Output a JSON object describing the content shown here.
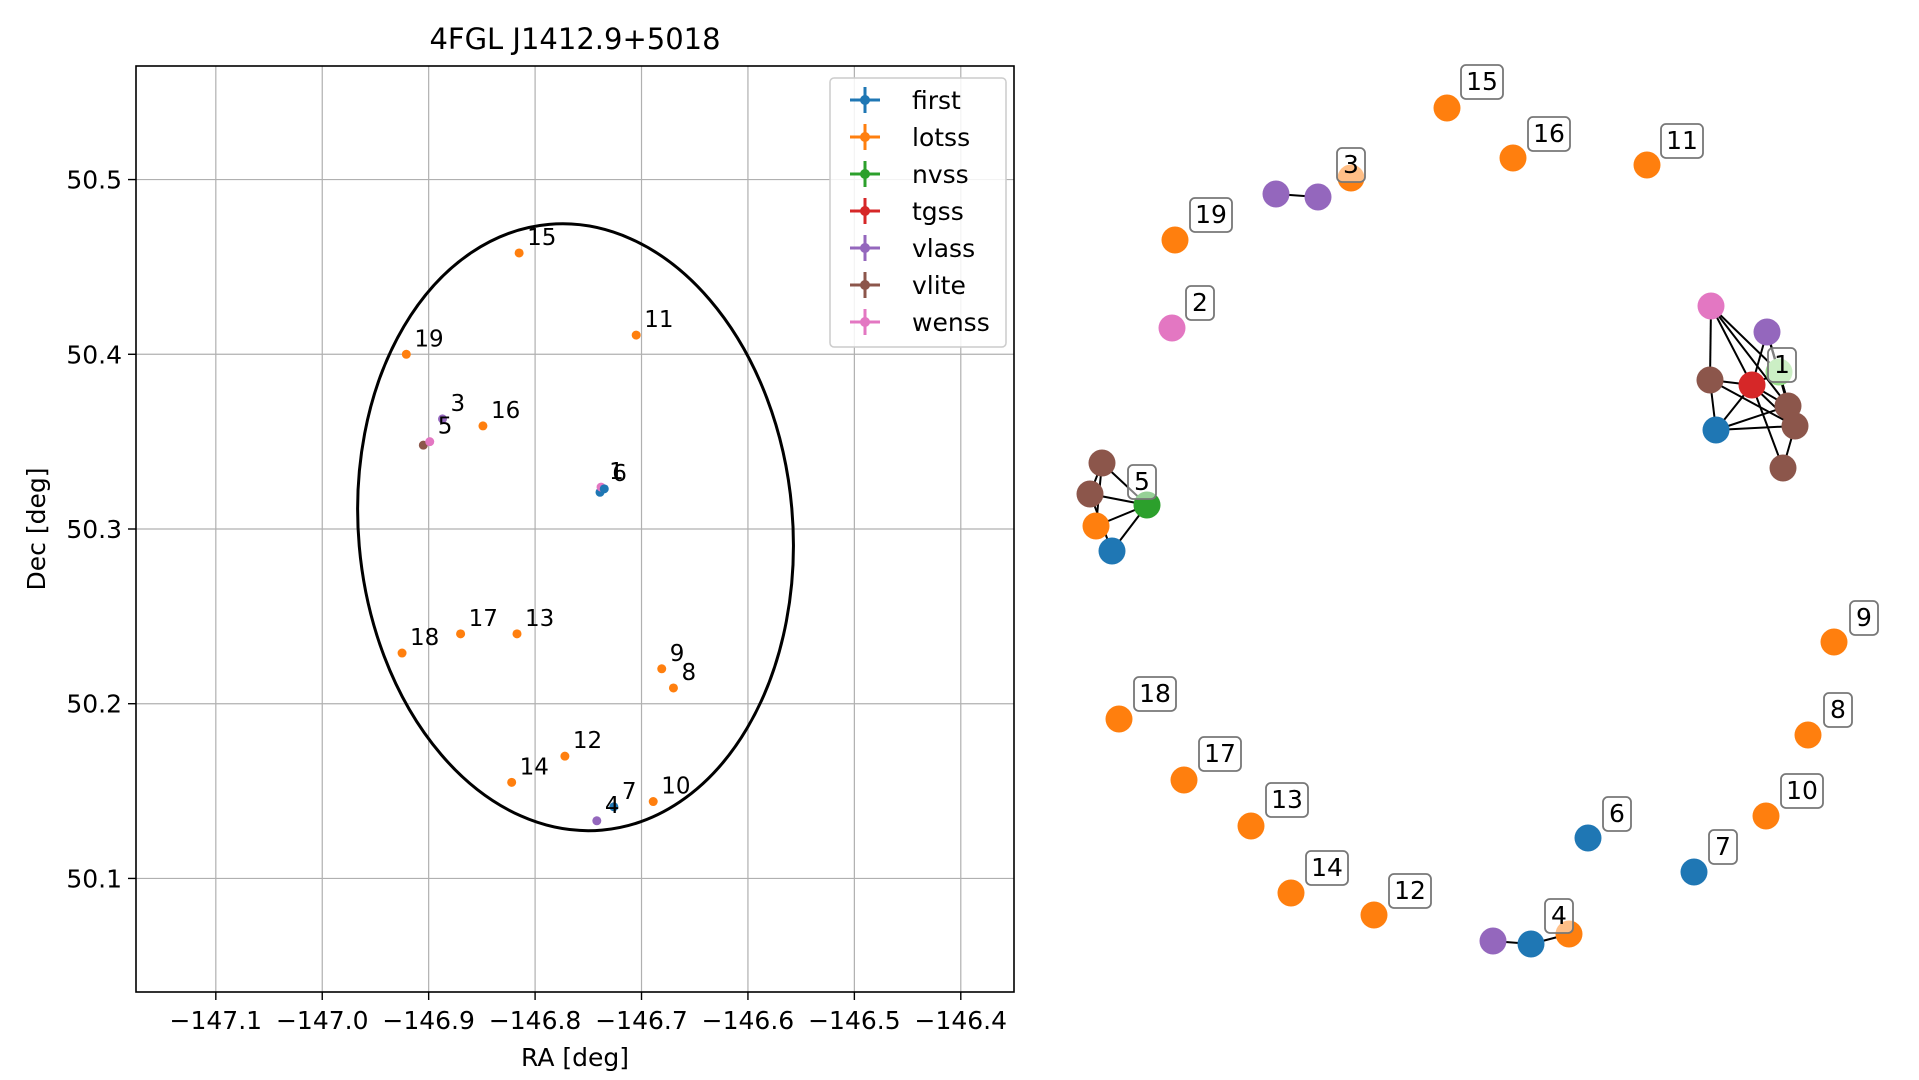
{
  "colors": {
    "first": "#1f77b4",
    "lotss": "#ff7f0e",
    "nvss": "#2ca02c",
    "nvss_light": "#98df8a",
    "tgss": "#d62728",
    "vlass": "#9467bd",
    "vlite": "#8c564b",
    "wenss": "#e377c2",
    "grid": "#b0b0b0",
    "ellipse": "#000000"
  },
  "chart_data": [
    {
      "type": "scatter",
      "title": "4FGL J1412.9+5018",
      "xlabel": "RA [deg]",
      "ylabel": "Dec [deg]",
      "xlim": [
        -147.175,
        -146.35
      ],
      "ylim": [
        50.035,
        50.565
      ],
      "x_ticks": [
        -147.1,
        -147.0,
        -146.9,
        -146.8,
        -146.7,
        -146.6,
        -146.5,
        -146.4
      ],
      "x_tick_labels": [
        "−147.1",
        "−147.0",
        "−146.9",
        "−146.8",
        "−146.7",
        "−146.6",
        "−146.5",
        "−146.4"
      ],
      "y_ticks": [
        50.1,
        50.2,
        50.3,
        50.4,
        50.5
      ],
      "y_tick_labels": [
        "50.1",
        "50.2",
        "50.3",
        "50.4",
        "50.5"
      ],
      "grid": true,
      "legend_placement": "upper right",
      "legend": [
        "first",
        "lotss",
        "nvss",
        "tgss",
        "vlass",
        "vlite",
        "wenss"
      ],
      "ellipse": {
        "center_ra": -146.762,
        "center_dec": 50.301,
        "semi_ra": 0.204,
        "semi_dec": 0.174,
        "angle_deg": -5
      },
      "points": [
        {
          "survey": "lotss",
          "ra": -146.815,
          "dec": 50.458,
          "label": "15"
        },
        {
          "survey": "lotss",
          "ra": -146.705,
          "dec": 50.411,
          "label": "11"
        },
        {
          "survey": "lotss",
          "ra": -146.921,
          "dec": 50.4,
          "label": "19"
        },
        {
          "survey": "vlass",
          "ra": -146.887,
          "dec": 50.363,
          "label": "3"
        },
        {
          "survey": "lotss",
          "ra": -146.849,
          "dec": 50.359,
          "label": "16"
        },
        {
          "survey": "vlite",
          "ra": -146.905,
          "dec": 50.348,
          "label": ""
        },
        {
          "survey": "wenss",
          "ra": -146.899,
          "dec": 50.35,
          "label": "5"
        },
        {
          "survey": "first",
          "ra": -146.739,
          "dec": 50.321,
          "label": ""
        },
        {
          "survey": "wenss",
          "ra": -146.738,
          "dec": 50.324,
          "label": "1"
        },
        {
          "survey": "first",
          "ra": -146.735,
          "dec": 50.323,
          "label": "6"
        },
        {
          "survey": "lotss",
          "ra": -146.925,
          "dec": 50.229,
          "label": "18"
        },
        {
          "survey": "lotss",
          "ra": -146.87,
          "dec": 50.24,
          "label": "17"
        },
        {
          "survey": "lotss",
          "ra": -146.817,
          "dec": 50.24,
          "label": "13"
        },
        {
          "survey": "lotss",
          "ra": -146.681,
          "dec": 50.22,
          "label": "9"
        },
        {
          "survey": "lotss",
          "ra": -146.67,
          "dec": 50.209,
          "label": "8"
        },
        {
          "survey": "lotss",
          "ra": -146.772,
          "dec": 50.17,
          "label": "12"
        },
        {
          "survey": "lotss",
          "ra": -146.822,
          "dec": 50.155,
          "label": "14"
        },
        {
          "survey": "lotss",
          "ra": -146.689,
          "dec": 50.144,
          "label": "10"
        },
        {
          "survey": "first",
          "ra": -146.726,
          "dec": 50.141,
          "label": "7"
        },
        {
          "survey": "vlass",
          "ra": -146.742,
          "dec": 50.133,
          "label": "4"
        }
      ]
    },
    {
      "type": "network",
      "groups": [
        {
          "label": "15",
          "nodes": [
            "lotss"
          ]
        },
        {
          "label": "16",
          "nodes": [
            "lotss"
          ]
        },
        {
          "label": "11",
          "nodes": [
            "lotss"
          ]
        },
        {
          "label": "3",
          "nodes": [
            "vlass",
            "vlass",
            "lotss"
          ]
        },
        {
          "label": "19",
          "nodes": [
            "lotss"
          ]
        },
        {
          "label": "2",
          "nodes": [
            "wenss"
          ]
        },
        {
          "label": "1",
          "nodes": [
            "wenss",
            "vlass",
            "nvss",
            "vlite",
            "tgss",
            "vlite",
            "vlite",
            "first",
            "vlite"
          ]
        },
        {
          "label": "5",
          "nodes": [
            "vlite",
            "vlite",
            "nvss",
            "lotss",
            "first"
          ]
        },
        {
          "label": "9",
          "nodes": [
            "lotss"
          ]
        },
        {
          "label": "18",
          "nodes": [
            "lotss"
          ]
        },
        {
          "label": "8",
          "nodes": [
            "lotss"
          ]
        },
        {
          "label": "17",
          "nodes": [
            "lotss"
          ]
        },
        {
          "label": "10",
          "nodes": [
            "lotss"
          ]
        },
        {
          "label": "13",
          "nodes": [
            "lotss"
          ]
        },
        {
          "label": "6",
          "nodes": [
            "first"
          ]
        },
        {
          "label": "7",
          "nodes": [
            "first"
          ]
        },
        {
          "label": "14",
          "nodes": [
            "lotss"
          ]
        },
        {
          "label": "12",
          "nodes": [
            "lotss"
          ]
        },
        {
          "label": "4",
          "nodes": [
            "vlass",
            "first",
            "lotss"
          ]
        }
      ]
    }
  ]
}
